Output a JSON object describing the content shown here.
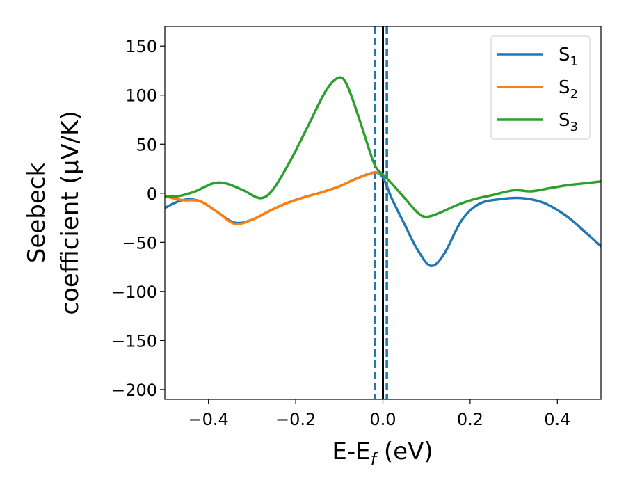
{
  "chart_data": {
    "type": "line",
    "xlabel": {
      "main": "E-E",
      "sub": "f",
      "tail": " (eV)"
    },
    "ylabel": {
      "line1": "Seebeck",
      "line2": "coefficient  (μV/K)"
    },
    "xlim": [
      -0.5,
      0.5
    ],
    "ylim": [
      -210,
      170
    ],
    "x_ticks": [
      -0.4,
      -0.2,
      0.0,
      0.2,
      0.4
    ],
    "x_tick_labels": [
      "−0.4",
      "−0.2",
      "0.0",
      "0.2",
      "0.4"
    ],
    "y_ticks": [
      150,
      100,
      50,
      0,
      -50,
      -100,
      -150,
      -200
    ],
    "y_tick_labels": [
      "150",
      "100",
      "50",
      "0",
      "−50",
      "−100",
      "−150",
      "−200"
    ],
    "grid": false,
    "legend_position": "top-right",
    "vertical_lines": [
      {
        "x": -0.018,
        "style": "dashed",
        "color": "#1f77b4"
      },
      {
        "x": 0.009,
        "style": "dashed",
        "color": "#1f77b4"
      },
      {
        "x": 0.0,
        "style": "solid",
        "color": "#000000"
      }
    ],
    "series": [
      {
        "name": "S",
        "sub": "1",
        "color": "#1f77b4",
        "points": [
          [
            -0.5,
            -15
          ],
          [
            -0.46,
            -7
          ],
          [
            -0.42,
            -8
          ],
          [
            -0.38,
            -19
          ],
          [
            -0.34,
            -30
          ],
          [
            -0.3,
            -27
          ],
          [
            -0.26,
            -18
          ],
          [
            -0.22,
            -10
          ],
          [
            -0.18,
            -4
          ],
          [
            -0.14,
            1
          ],
          [
            -0.1,
            7
          ],
          [
            -0.06,
            15
          ],
          [
            -0.02,
            21
          ],
          [
            0.0,
            16
          ],
          [
            0.02,
            -5
          ],
          [
            0.05,
            -32
          ],
          [
            0.08,
            -58
          ],
          [
            0.11,
            -74
          ],
          [
            0.14,
            -62
          ],
          [
            0.18,
            -28
          ],
          [
            0.22,
            -11
          ],
          [
            0.27,
            -6
          ],
          [
            0.32,
            -5
          ],
          [
            0.37,
            -10
          ],
          [
            0.42,
            -23
          ],
          [
            0.46,
            -38
          ],
          [
            0.5,
            -54
          ]
        ]
      },
      {
        "name": "S",
        "sub": "2",
        "color": "#ff7f0e",
        "points": [
          [
            -0.5,
            -3
          ],
          [
            -0.46,
            -7
          ],
          [
            -0.42,
            -8
          ],
          [
            -0.38,
            -19
          ],
          [
            -0.34,
            -31
          ],
          [
            -0.3,
            -27
          ],
          [
            -0.26,
            -18
          ],
          [
            -0.22,
            -10
          ],
          [
            -0.18,
            -4
          ],
          [
            -0.14,
            1
          ],
          [
            -0.1,
            7
          ],
          [
            -0.06,
            15
          ],
          [
            -0.02,
            21
          ],
          [
            0.0,
            20
          ]
        ]
      },
      {
        "name": "S",
        "sub": "3",
        "color": "#2ca02c",
        "points": [
          [
            -0.5,
            -3
          ],
          [
            -0.47,
            -3
          ],
          [
            -0.43,
            2
          ],
          [
            -0.39,
            10
          ],
          [
            -0.36,
            10
          ],
          [
            -0.32,
            3
          ],
          [
            -0.28,
            -5
          ],
          [
            -0.25,
            5
          ],
          [
            -0.21,
            35
          ],
          [
            -0.17,
            70
          ],
          [
            -0.13,
            105
          ],
          [
            -0.1,
            118
          ],
          [
            -0.08,
            108
          ],
          [
            -0.05,
            70
          ],
          [
            -0.02,
            30
          ],
          [
            0.0,
            19
          ],
          [
            0.02,
            10
          ],
          [
            0.05,
            -5
          ],
          [
            0.08,
            -20
          ],
          [
            0.1,
            -24
          ],
          [
            0.13,
            -20
          ],
          [
            0.17,
            -12
          ],
          [
            0.21,
            -6
          ],
          [
            0.25,
            -2
          ],
          [
            0.3,
            3
          ],
          [
            0.34,
            2
          ],
          [
            0.38,
            5
          ],
          [
            0.42,
            8
          ],
          [
            0.46,
            10
          ],
          [
            0.5,
            12
          ]
        ]
      }
    ]
  }
}
